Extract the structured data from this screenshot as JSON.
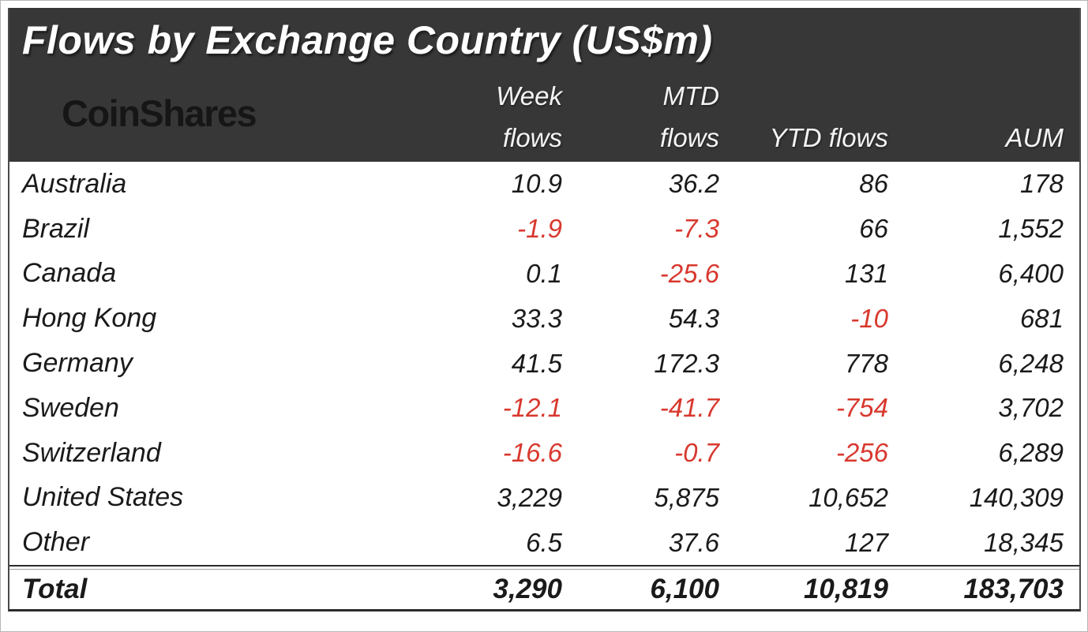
{
  "table": {
    "title": "Flows by Exchange Country (US$m)",
    "logo_text": "CoinShares",
    "columns": {
      "week": [
        "Week",
        "flows"
      ],
      "mtd": [
        "MTD",
        "flows"
      ],
      "ytd": "YTD flows",
      "aum": "AUM"
    },
    "rows": [
      {
        "country": "Australia",
        "week": "10.9",
        "mtd": "36.2",
        "ytd": "86",
        "aum": "178"
      },
      {
        "country": "Brazil",
        "week": "-1.9",
        "mtd": "-7.3",
        "ytd": "66",
        "aum": "1,552"
      },
      {
        "country": "Canada",
        "week": "0.1",
        "mtd": "-25.6",
        "ytd": "131",
        "aum": "6,400"
      },
      {
        "country": "Hong Kong",
        "week": "33.3",
        "mtd": "54.3",
        "ytd": "-10",
        "aum": "681"
      },
      {
        "country": "Germany",
        "week": "41.5",
        "mtd": "172.3",
        "ytd": "778",
        "aum": "6,248"
      },
      {
        "country": "Sweden",
        "week": "-12.1",
        "mtd": "-41.7",
        "ytd": "-754",
        "aum": "3,702"
      },
      {
        "country": "Switzerland",
        "week": "-16.6",
        "mtd": "-0.7",
        "ytd": "-256",
        "aum": "6,289"
      },
      {
        "country": "United States",
        "week": "3,229",
        "mtd": "5,875",
        "ytd": "10,652",
        "aum": "140,309"
      },
      {
        "country": "Other",
        "week": "6.5",
        "mtd": "37.6",
        "ytd": "127",
        "aum": "18,345"
      }
    ],
    "total": {
      "label": "Total",
      "week": "3,290",
      "mtd": "6,100",
      "ytd": "10,819",
      "aum": "183,703"
    },
    "colors": {
      "header_bg": "#373737",
      "negative": "#d8382e"
    }
  },
  "chart_data": {
    "type": "table",
    "title": "Flows by Exchange Country (US$m)",
    "columns": [
      "Country",
      "Week flows",
      "MTD flows",
      "YTD flows",
      "AUM"
    ],
    "rows": [
      [
        "Australia",
        10.9,
        36.2,
        86,
        178
      ],
      [
        "Brazil",
        -1.9,
        -7.3,
        66,
        1552
      ],
      [
        "Canada",
        0.1,
        -25.6,
        131,
        6400
      ],
      [
        "Hong Kong",
        33.3,
        54.3,
        -10,
        681
      ],
      [
        "Germany",
        41.5,
        172.3,
        778,
        6248
      ],
      [
        "Sweden",
        -12.1,
        -41.7,
        -754,
        3702
      ],
      [
        "Switzerland",
        -16.6,
        -0.7,
        -256,
        6289
      ],
      [
        "United States",
        3229,
        5875,
        10652,
        140309
      ],
      [
        "Other",
        6.5,
        37.6,
        127,
        18345
      ],
      [
        "Total",
        3290,
        6100,
        10819,
        183703
      ]
    ],
    "units": "US$m",
    "negative_value_color": "#d8382e"
  }
}
